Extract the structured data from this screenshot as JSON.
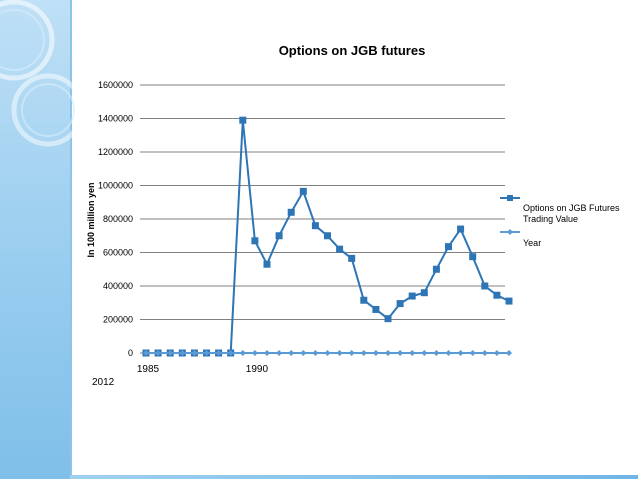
{
  "colors": {
    "series1": "#2e75b6",
    "series2": "#5b9bd5",
    "grid": "#808080"
  },
  "chart_data": {
    "type": "line",
    "title": "Options on JGB futures",
    "ylabel": "In 100 million yen",
    "ylim": [
      0,
      1600000
    ],
    "yticks": [
      0,
      200000,
      400000,
      600000,
      800000,
      1000000,
      1200000,
      1400000,
      1600000
    ],
    "ytick_labels": [
      "0",
      "200000",
      "400000",
      "600000",
      "800000",
      "1000000",
      "1200000",
      "1400000",
      "1600000"
    ],
    "x_tick_labels": [
      {
        "index": 0,
        "label": "1985"
      },
      {
        "index": 9,
        "label": "1990"
      }
    ],
    "extra_label": "2012",
    "grid": true,
    "legend_position": "right",
    "series": [
      {
        "name": "Options on JGB Futures Trading Value",
        "values": [
          0,
          0,
          0,
          0,
          0,
          0,
          0,
          0,
          1390000,
          670000,
          530000,
          700000,
          840000,
          965000,
          760000,
          700000,
          620000,
          565000,
          315000,
          260000,
          205000,
          295000,
          340000,
          360000,
          500000,
          635000,
          740000,
          575000,
          400000,
          345000,
          310000
        ],
        "marker": "square"
      },
      {
        "name": "Year",
        "values": [
          0,
          0,
          0,
          0,
          0,
          0,
          0,
          0,
          0,
          0,
          0,
          0,
          0,
          0,
          0,
          0,
          0,
          0,
          0,
          0,
          0,
          0,
          0,
          0,
          0,
          0,
          0,
          0,
          0,
          0,
          0
        ],
        "marker": "diamond"
      }
    ],
    "legend": [
      "Options on JGB Futures",
      "Trading Value",
      "Year"
    ]
  }
}
